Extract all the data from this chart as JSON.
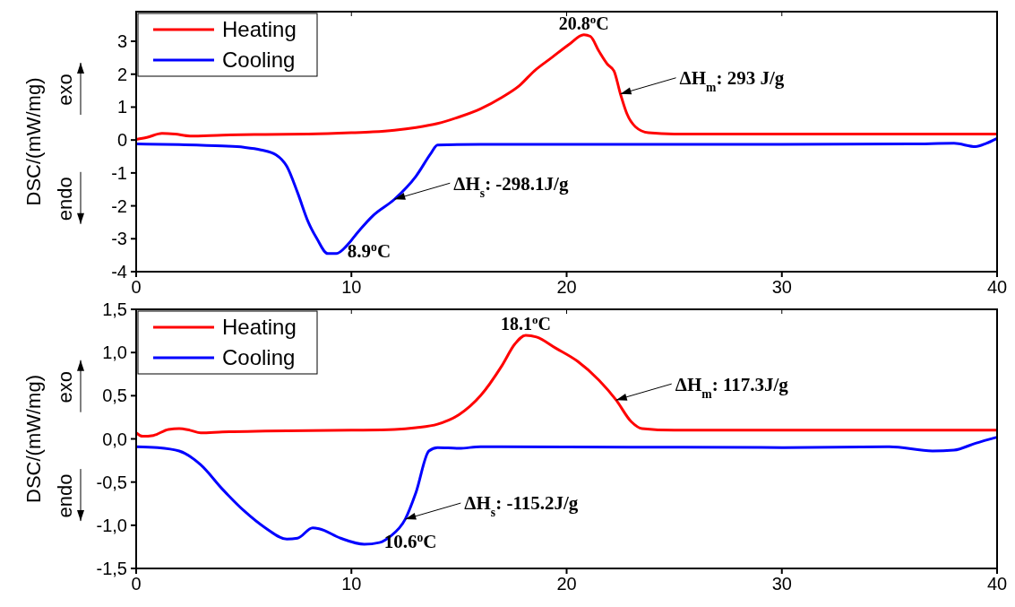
{
  "chart_data": [
    {
      "type": "line",
      "ylabel": "DSC/(mW/mg)",
      "xlim": [
        0,
        40
      ],
      "xticks": [
        0,
        10,
        20,
        30,
        40
      ],
      "ylim": [
        -4,
        3.9
      ],
      "yticks": [
        -4,
        -3,
        -2,
        -1,
        0,
        1,
        2,
        3
      ],
      "legend": "top left",
      "grid": false,
      "marker": "none",
      "line_style": "solid",
      "annotations": [
        "exo",
        "endo",
        {
          "text": "20.8$^{o}$C",
          "x": 20.8,
          "y": 3.2
        },
        {
          "text": "ΔH$_{m}$: 293 J/g",
          "x": 22.5,
          "y": 1.4
        },
        {
          "text": "ΔH$_{s}$: -298.1J/g",
          "x": 12,
          "y": -1.8
        },
        {
          "text": "8.9$^{o}$C",
          "x": 8.9,
          "y": -3.45
        }
      ],
      "series": [
        {
          "name": "Heating",
          "color": "#ff0000",
          "x": [
            0,
            0.5,
            1.2,
            1.8,
            2.5,
            4,
            6,
            8,
            10,
            11,
            12,
            13,
            14,
            15,
            16,
            17,
            17.8,
            18.5,
            19.3,
            20.1,
            20.8,
            21.1,
            21.5,
            21.9,
            22.2,
            22.5,
            22.8,
            23.2,
            23.8,
            25,
            30,
            40
          ],
          "values": [
            0.02,
            0.08,
            0.2,
            0.18,
            0.12,
            0.15,
            0.17,
            0.18,
            0.22,
            0.25,
            0.3,
            0.38,
            0.5,
            0.7,
            0.95,
            1.3,
            1.65,
            2.1,
            2.5,
            2.9,
            3.2,
            3.15,
            2.7,
            2.3,
            2.1,
            1.4,
            0.8,
            0.4,
            0.22,
            0.18,
            0.18,
            0.18
          ]
        },
        {
          "name": "Cooling",
          "color": "#0000ff",
          "x": [
            0,
            2,
            4,
            5,
            5.8,
            6.5,
            7,
            7.5,
            8,
            8.4,
            8.9,
            9.3,
            9.8,
            10.3,
            11,
            12,
            13,
            13.7,
            14,
            16,
            20,
            30,
            36,
            38,
            39,
            39.5,
            40
          ],
          "values": [
            -0.12,
            -0.14,
            -0.18,
            -0.22,
            -0.3,
            -0.45,
            -0.8,
            -1.6,
            -2.5,
            -3.0,
            -3.45,
            -3.45,
            -3.2,
            -2.8,
            -2.3,
            -1.8,
            -1.1,
            -0.4,
            -0.15,
            -0.13,
            -0.13,
            -0.13,
            -0.12,
            -0.1,
            -0.2,
            -0.1,
            0.05
          ]
        }
      ]
    },
    {
      "type": "line",
      "ylabel": "DSC/(mW/mg)",
      "xlim": [
        0,
        40
      ],
      "xticks": [
        0,
        10,
        20,
        30,
        40
      ],
      "ylim": [
        -1.5,
        1.5
      ],
      "yticks": [
        {
          "value": -1.5,
          "label": "-1,5"
        },
        {
          "value": -1,
          "label": "-1,0"
        },
        {
          "value": -0.5,
          "label": "-0,5"
        },
        {
          "value": 0,
          "label": "0,0"
        },
        {
          "value": 0.5,
          "label": "0,5"
        },
        {
          "value": 1,
          "label": "1,0"
        },
        {
          "value": 1.5,
          "label": "1,5"
        }
      ],
      "legend": "top left",
      "grid": false,
      "marker": "none",
      "line_style": "solid",
      "annotations": [
        "exo",
        "endo",
        {
          "text": "18.1$^{o}$C",
          "x": 18.1,
          "y": 1.2
        },
        {
          "text": "ΔH$_{m}$: 117.3J/g",
          "x": 22.3,
          "y": 0.45
        },
        {
          "text": "ΔH$_{s}$: -115.2J/g",
          "x": 12.5,
          "y": -0.93
        },
        {
          "text": "10.6$^{o}$C",
          "x": 10.6,
          "y": -1.22
        }
      ],
      "series": [
        {
          "name": "Heating",
          "color": "#ff0000",
          "x": [
            0,
            0.3,
            0.8,
            1.5,
            2,
            2.5,
            3,
            4,
            6,
            10,
            12,
            13,
            14,
            15,
            16,
            17,
            17.6,
            18.1,
            18.6,
            19.5,
            20.5,
            21.5,
            22.3,
            23,
            23.5,
            25,
            30,
            40
          ],
          "values": [
            0.07,
            0.03,
            0.04,
            0.11,
            0.12,
            0.1,
            0.07,
            0.08,
            0.09,
            0.1,
            0.11,
            0.13,
            0.17,
            0.28,
            0.5,
            0.85,
            1.1,
            1.2,
            1.18,
            1.05,
            0.9,
            0.68,
            0.45,
            0.2,
            0.12,
            0.1,
            0.1,
            0.1
          ]
        },
        {
          "name": "Cooling",
          "color": "#0000ff",
          "x": [
            0,
            1,
            2,
            3,
            4,
            5,
            6,
            7,
            7.5,
            8.2,
            8.5,
            9.5,
            10.6,
            11.3,
            11.8,
            12.5,
            13,
            13.6,
            14,
            15,
            16,
            30,
            35,
            37,
            38,
            39,
            40
          ],
          "values": [
            -0.09,
            -0.1,
            -0.14,
            -0.3,
            -0.58,
            -0.83,
            -1.03,
            -1.16,
            -1.15,
            -1.03,
            -1.04,
            -1.15,
            -1.22,
            -1.2,
            -1.13,
            -0.93,
            -0.62,
            -0.14,
            -0.1,
            -0.11,
            -0.09,
            -0.1,
            -0.09,
            -0.14,
            -0.13,
            -0.05,
            0.02
          ]
        }
      ]
    }
  ]
}
